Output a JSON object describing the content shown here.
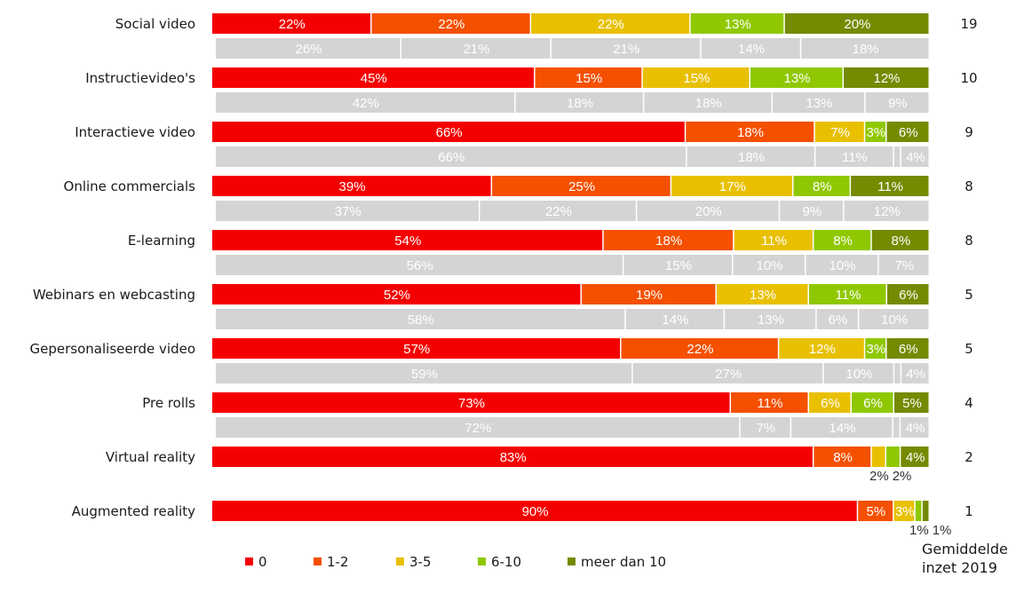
{
  "chart_data": {
    "type": "bar",
    "orientation": "horizontal",
    "stacked": true,
    "percent": true,
    "legend_position": "bottom",
    "series_names": [
      "0",
      "1-2",
      "3-5",
      "6-10",
      "meer dan 10"
    ],
    "colors": [
      "#f50000",
      "#f55000",
      "#e8c000",
      "#8fc800",
      "#758a00"
    ],
    "comparison_color": "#d4d4d4",
    "right_column_title": "Gemiddelde inzet 2019",
    "categories": [
      "Social video",
      "Instructievideo's",
      "Interactieve video",
      "Online commercials",
      "E-learning",
      "Webinars en webcasting",
      "Gepersonaliseerde video",
      "Pre rolls",
      "Virtual reality",
      "Augmented reality"
    ],
    "rows": [
      {
        "category": "Social video",
        "current": [
          22,
          22,
          22,
          13,
          20
        ],
        "previous": [
          26,
          21,
          21,
          14,
          18
        ],
        "avg": "19"
      },
      {
        "category": "Instructievideo's",
        "current": [
          45,
          15,
          15,
          13,
          12
        ],
        "previous": [
          42,
          18,
          18,
          13,
          9
        ],
        "avg": "10"
      },
      {
        "category": "Interactieve video",
        "current": [
          66,
          18,
          7,
          3,
          6
        ],
        "previous": [
          66,
          18,
          11,
          1,
          4
        ],
        "avg": "9"
      },
      {
        "category": "Online commercials",
        "current": [
          39,
          25,
          17,
          8,
          11
        ],
        "previous": [
          37,
          22,
          20,
          9,
          12
        ],
        "avg": "8"
      },
      {
        "category": "E-learning",
        "current": [
          54,
          18,
          11,
          8,
          8
        ],
        "previous": [
          56,
          15,
          10,
          10,
          7
        ],
        "avg": "8"
      },
      {
        "category": "Webinars en webcasting",
        "current": [
          52,
          19,
          13,
          11,
          6
        ],
        "previous": [
          58,
          14,
          13,
          6,
          10
        ],
        "avg": "5"
      },
      {
        "category": "Gepersonaliseerde video",
        "current": [
          57,
          22,
          12,
          3,
          6
        ],
        "previous": [
          59,
          27,
          10,
          1,
          4
        ],
        "avg": "5"
      },
      {
        "category": "Pre rolls",
        "current": [
          73,
          11,
          6,
          6,
          5
        ],
        "previous": [
          72,
          7,
          14,
          1,
          4
        ],
        "avg": "4"
      },
      {
        "category": "Virtual reality",
        "current": [
          83,
          8,
          2,
          2,
          4
        ],
        "previous": null,
        "avg": "2"
      },
      {
        "category": "Augmented reality",
        "current": [
          90,
          5,
          3,
          1,
          1
        ],
        "previous": null,
        "avg": "1"
      }
    ]
  }
}
